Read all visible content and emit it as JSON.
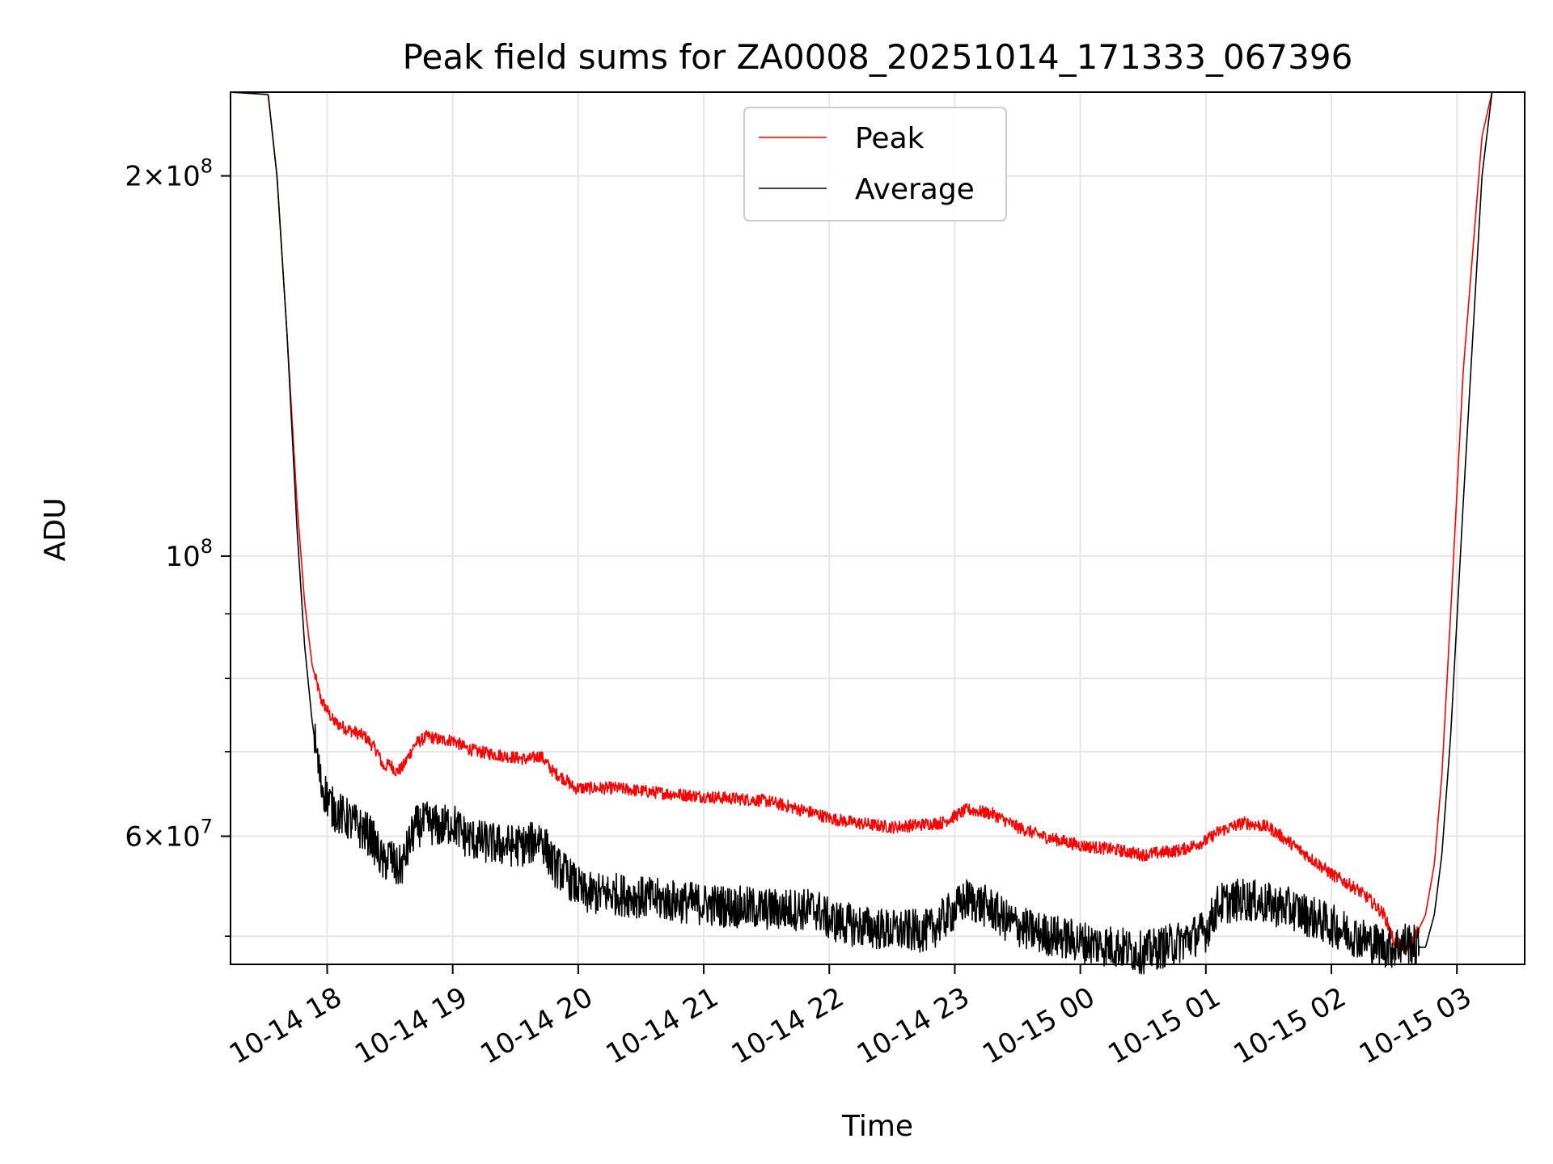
{
  "chart_data": {
    "type": "line",
    "title": "Peak field sums for ZA0008_20251014_171333_067396",
    "xlabel": "Time",
    "ylabel": "ADU",
    "yscale": "log",
    "xlim": [
      17.23,
      27.54
    ],
    "ylim": [
      47500000,
      233000000
    ],
    "grid": true,
    "legend_position": "upper-center",
    "x_ticks": [
      {
        "value": 18,
        "label": "10-14 18"
      },
      {
        "value": 19,
        "label": "10-14 19"
      },
      {
        "value": 20,
        "label": "10-14 20"
      },
      {
        "value": 21,
        "label": "10-14 21"
      },
      {
        "value": 22,
        "label": "10-14 22"
      },
      {
        "value": 23,
        "label": "10-14 23"
      },
      {
        "value": 24,
        "label": "10-15 00"
      },
      {
        "value": 25,
        "label": "10-15 01"
      },
      {
        "value": 26,
        "label": "10-15 02"
      },
      {
        "value": 27,
        "label": "10-15 03"
      }
    ],
    "y_major_ticks": [
      {
        "value": 60000000,
        "mantissa": "6",
        "exp": "7"
      },
      {
        "value": 100000000,
        "mantissa": "",
        "exp": "8"
      },
      {
        "value": 200000000,
        "mantissa": "2",
        "exp": "8"
      }
    ],
    "y_minor_ticks": [
      50000000,
      60000000,
      70000000,
      80000000,
      90000000,
      200000000
    ],
    "series": [
      {
        "name": "Peak",
        "color": "#ff0000",
        "noise": 0.005,
        "x": [
          17.23,
          17.53,
          17.6,
          17.68,
          17.76,
          17.82,
          17.88,
          17.95,
          18.05,
          18.15,
          18.3,
          18.4,
          18.45,
          18.5,
          18.55,
          18.6,
          18.7,
          18.8,
          18.9,
          19.0,
          19.1,
          19.2,
          19.4,
          19.6,
          19.7,
          19.8,
          19.9,
          19.97,
          20.05,
          20.3,
          20.6,
          21.0,
          21.5,
          21.9,
          22.0,
          22.2,
          22.5,
          22.9,
          23.1,
          23.3,
          23.5,
          23.7,
          24.0,
          24.3,
          24.5,
          24.8,
          25.0,
          25.1,
          25.3,
          25.5,
          25.6,
          25.8,
          26.0,
          26.2,
          26.3,
          26.42,
          26.5,
          26.58,
          26.65,
          26.75,
          26.82,
          26.88,
          26.95,
          27.05,
          27.2,
          27.28,
          27.54
        ],
        "y": [
          233000000,
          232000000,
          200000000,
          150000000,
          110000000,
          92000000,
          82000000,
          77000000,
          74000000,
          73000000,
          72000000,
          70000000,
          68000000,
          68500000,
          67500000,
          68000000,
          71000000,
          72000000,
          71500000,
          71500000,
          70500000,
          70000000,
          69500000,
          69000000,
          69500000,
          67500000,
          66500000,
          65500000,
          65500000,
          65500000,
          65000000,
          64500000,
          64000000,
          62500000,
          62000000,
          61500000,
          61000000,
          61500000,
          63000000,
          62500000,
          61000000,
          60000000,
          59000000,
          58500000,
          58000000,
          58500000,
          59500000,
          60500000,
          61500000,
          61000000,
          60000000,
          58000000,
          56000000,
          54500000,
          53500000,
          52000000,
          49500000,
          49000000,
          49500000,
          52000000,
          57000000,
          67000000,
          90000000,
          140000000,
          215000000,
          233000000,
          233000000
        ]
      },
      {
        "name": "Average",
        "color": "#000000",
        "noise": 0.017,
        "x": [
          17.23,
          17.53,
          17.6,
          17.68,
          17.76,
          17.82,
          17.88,
          17.95,
          18.05,
          18.15,
          18.25,
          18.35,
          18.45,
          18.5,
          18.55,
          18.6,
          18.65,
          18.7,
          18.8,
          18.9,
          19.0,
          19.1,
          19.2,
          19.4,
          19.6,
          19.7,
          19.8,
          19.9,
          19.97,
          20.05,
          20.3,
          20.6,
          21.0,
          21.5,
          21.9,
          22.0,
          22.2,
          22.5,
          22.8,
          22.95,
          23.1,
          23.3,
          23.4,
          23.6,
          23.8,
          24.0,
          24.3,
          24.5,
          24.8,
          25.0,
          25.1,
          25.3,
          25.5,
          25.7,
          25.9,
          26.1,
          26.3,
          26.45,
          26.5,
          26.6,
          26.68,
          26.75,
          26.82,
          26.88,
          26.95,
          27.05,
          27.2,
          27.28,
          27.54
        ],
        "y": [
          233000000,
          232000000,
          200000000,
          150000000,
          105000000,
          85000000,
          74000000,
          66000000,
          63000000,
          62000000,
          61000000,
          60000000,
          57000000,
          58000000,
          56500000,
          57000000,
          59000000,
          61000000,
          61500000,
          61000000,
          61500000,
          60000000,
          59500000,
          59000000,
          59000000,
          60000000,
          57000000,
          56000000,
          55000000,
          54000000,
          54000000,
          53500000,
          53000000,
          52500000,
          52500000,
          51500000,
          51000000,
          50500000,
          50500000,
          52000000,
          53500000,
          52500000,
          51500000,
          50500000,
          50000000,
          49500000,
          49000000,
          48500000,
          49500000,
          50500000,
          53000000,
          53500000,
          53000000,
          52500000,
          51500000,
          50500000,
          49500000,
          49000000,
          49000000,
          49500000,
          49000000,
          49000000,
          52000000,
          58000000,
          72000000,
          110000000,
          200000000,
          233000000,
          233000000
        ]
      }
    ]
  }
}
